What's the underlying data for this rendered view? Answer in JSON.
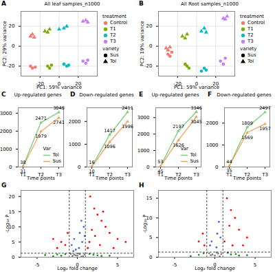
{
  "chart_data": [
    {
      "panel": "A",
      "type": "scatter",
      "title": "All leaf samples_n1000",
      "x_label": "PC1: 59% variance",
      "y_label": "PC2: 29% variance",
      "xlim": [
        -40,
        40
      ],
      "xticks": [
        -20,
        0,
        20
      ],
      "ylim": [
        -30,
        35
      ],
      "yticks": [
        -20,
        0,
        20
      ],
      "grid": true,
      "legend": "right",
      "legend_titles": [
        "treatment",
        "variety"
      ],
      "varieties": [
        {
          "name": "Sus",
          "marker": "circle"
        },
        {
          "name": "Tol",
          "marker": "triangle"
        }
      ],
      "series": [
        {
          "name": "Control",
          "color": "#F8766D",
          "x": [
            -30,
            -28,
            -26,
            -30,
            -28,
            -25
          ],
          "y": [
            10,
            12,
            9,
            -20,
            -22,
            -21
          ],
          "variety": [
            "Tol",
            "Tol",
            "Tol",
            "Sus",
            "Sus",
            "Sus"
          ]
        },
        {
          "name": "T1",
          "color": "#7CAE00",
          "x": [
            -15,
            -12,
            -10,
            -12,
            -10,
            -8
          ],
          "y": [
            15,
            14,
            17,
            -20,
            -22,
            -19
          ],
          "variety": [
            "Tol",
            "Tol",
            "Tol",
            "Sus",
            "Sus",
            "Sus"
          ]
        },
        {
          "name": "T2",
          "color": "#00BFC4",
          "x": [
            0,
            5,
            8,
            5,
            8,
            10
          ],
          "y": [
            17,
            18,
            20,
            -18,
            -20,
            -19
          ],
          "variety": [
            "Tol",
            "Tol",
            "Tol",
            "Sus",
            "Sus",
            "Sus"
          ]
        },
        {
          "name": "T3",
          "color": "#C77CFF",
          "x": [
            25,
            28,
            30,
            25,
            28,
            30
          ],
          "y": [
            25,
            26,
            24,
            -15,
            -17,
            -14
          ],
          "variety": [
            "Tol",
            "Tol",
            "Tol",
            "Sus",
            "Sus",
            "Sus"
          ]
        }
      ]
    },
    {
      "panel": "B",
      "type": "scatter",
      "title": "All Root samples_n1000",
      "x_label": "PC1: 59% variance",
      "y_label": "PC2: 19% variance",
      "xlim": [
        -40,
        40
      ],
      "xticks": [
        -20,
        0,
        20
      ],
      "ylim": [
        -30,
        35
      ],
      "yticks": [
        -20,
        0,
        20
      ],
      "grid": true,
      "legend": "right",
      "legend_titles": [
        "treatment",
        "variety"
      ],
      "varieties": [
        {
          "name": "Sus",
          "marker": "circle"
        },
        {
          "name": "Tol",
          "marker": "triangle"
        }
      ],
      "series": [
        {
          "name": "Control",
          "color": "#F8766D",
          "x": [
            -32,
            -30,
            -28,
            -30,
            -28,
            -26
          ],
          "y": [
            -2,
            -4,
            -1,
            -8,
            -10,
            -6
          ],
          "variety": [
            "Tol",
            "Tol",
            "Tol",
            "Sus",
            "Sus",
            "Sus"
          ]
        },
        {
          "name": "T1",
          "color": "#7CAE00",
          "x": [
            -15,
            -12,
            -10,
            -10,
            -8,
            -12
          ],
          "y": [
            10,
            8,
            12,
            -20,
            -22,
            -18
          ],
          "variety": [
            "Tol",
            "Tol",
            "Tol",
            "Sus",
            "Sus",
            "Sus"
          ]
        },
        {
          "name": "T2",
          "color": "#00BFC4",
          "x": [
            5,
            8,
            10,
            5,
            8,
            10
          ],
          "y": [
            15,
            18,
            14,
            -25,
            -22,
            -24
          ],
          "variety": [
            "Tol",
            "Tol",
            "Tol",
            "Sus",
            "Sus",
            "Sus"
          ]
        },
        {
          "name": "T3",
          "color": "#C77CFF",
          "x": [
            28,
            30,
            32,
            25,
            28,
            30
          ],
          "y": [
            28,
            27,
            30,
            -15,
            -18,
            -12
          ],
          "variety": [
            "Tol",
            "Tol",
            "Tol",
            "Sus",
            "Sus",
            "Sus"
          ]
        }
      ]
    },
    {
      "panel": "C",
      "type": "line",
      "title": "Up-regulated genes",
      "x_label": "Time points",
      "categories": [
        "T1",
        "T2",
        "T3"
      ],
      "ylim": [
        0,
        3300
      ],
      "yticks": [
        0,
        1000,
        2000,
        3000
      ],
      "grid": false,
      "data_labels": true,
      "marker": "triangle",
      "legend": "bottom-right",
      "legend_titles": [
        "Var"
      ],
      "series": [
        {
          "name": "Tol",
          "color": "#7ccd7c",
          "values": [
            38,
            2471,
            3048
          ]
        },
        {
          "name": "Sus",
          "color": "#f4a460",
          "values": [
            31,
            1979,
            2741
          ]
        }
      ]
    },
    {
      "panel": "D",
      "type": "line",
      "title": "Down-regulated genes",
      "x_label": "Time points",
      "categories": [
        "T1",
        "T2",
        "T3"
      ],
      "ylim": [
        0,
        2600
      ],
      "yticks": [
        0,
        1000,
        2000
      ],
      "grid": false,
      "data_labels": true,
      "marker": "triangle",
      "series": [
        {
          "name": "Tol",
          "color": "#7ccd7c",
          "values": [
            16,
            1417,
            2411
          ]
        },
        {
          "name": "Sus",
          "color": "#f4a460",
          "values": [
            10,
            1096,
            1996
          ]
        }
      ]
    },
    {
      "panel": "E",
      "type": "line",
      "title": "Up-regulated genes",
      "x_label": "Time points",
      "categories": [
        "T1",
        "T2",
        "T3"
      ],
      "ylim": [
        0,
        3600
      ],
      "yticks": [
        0,
        1000,
        2000,
        3000
      ],
      "grid": false,
      "data_labels": true,
      "marker": "triangle",
      "legend": "bottom-right",
      "legend_titles": [
        "Var"
      ],
      "series": [
        {
          "name": "Tol",
          "color": "#7ccd7c",
          "values": [
            53,
            2197,
            3346
          ]
        },
        {
          "name": "Sus",
          "color": "#f4a460",
          "values": [
            45,
            1626,
            3045
          ]
        }
      ]
    },
    {
      "panel": "F",
      "type": "line",
      "title": "Down-regulated genes",
      "x_label": "Time points",
      "categories": [
        "T1",
        "T2",
        "T3"
      ],
      "ylim": [
        0,
        2700
      ],
      "yticks": [
        0,
        1000,
        2000
      ],
      "grid": false,
      "data_labels": true,
      "marker": "triangle",
      "series": [
        {
          "name": "Tol",
          "color": "#7ccd7c",
          "values": [
            44,
            1809,
            2497
          ]
        },
        {
          "name": "Sus",
          "color": "#f4a460",
          "values": [
            35,
            1569,
            1957
          ]
        }
      ]
    },
    {
      "panel": "G",
      "type": "scatter",
      "x_label": "Log₂ fold change",
      "y_label": "-Log₁₀ P",
      "xlim": [
        -7,
        7
      ],
      "xticks": [
        -5,
        0,
        5
      ],
      "ylim": [
        0,
        22
      ],
      "yticks": [
        0,
        5,
        10,
        15,
        20
      ],
      "grid": false,
      "cutoffs": {
        "x": [
          -1,
          1
        ],
        "y": 1.3
      },
      "series": [
        {
          "color": "#808080",
          "x": [
            0,
            0.3,
            -0.4,
            0.7,
            -0.8,
            0.5,
            -0.2,
            0.1,
            -0.6,
            0.9
          ],
          "y": [
            0.5,
            1,
            0.8,
            0.3,
            1.1,
            0.2,
            0.6,
            1.2,
            0.4,
            0.9
          ]
        },
        {
          "color": "#228B22",
          "x": [
            -2,
            -1.5,
            2,
            3,
            -3,
            1.5,
            2.5,
            -2.5,
            4,
            -4
          ],
          "y": [
            0.5,
            1,
            0.8,
            0.4,
            0.3,
            1.1,
            0.6,
            0.9,
            0.5,
            0.7
          ]
        },
        {
          "color": "#4169E1",
          "x": [
            0.5,
            0.3,
            -0.4,
            0.8,
            -0.7,
            0.2,
            0.6,
            -0.2,
            0.9,
            -0.5
          ],
          "y": [
            12,
            8,
            6,
            10,
            4,
            3,
            5,
            2.5,
            7,
            2
          ]
        },
        {
          "color": "#FF0000",
          "x": [
            2.1,
            2.5,
            3,
            3.5,
            1.8,
            4,
            2.2,
            5,
            1.5,
            -1.5,
            -2,
            -2.5,
            -3,
            1.3,
            2.8,
            4.5,
            6,
            -1.2,
            1.6,
            3.2
          ],
          "y": [
            16,
            14,
            12,
            10,
            9,
            8,
            7,
            6,
            5,
            4,
            5,
            3,
            6,
            3,
            4,
            3,
            5,
            8,
            20,
            15
          ]
        }
      ]
    },
    {
      "panel": "H",
      "type": "scatter",
      "x_label": "Log₂ fold change",
      "y_label": "-Log₁₀ P",
      "xlim": [
        -7,
        7
      ],
      "xticks": [
        -5,
        0,
        5
      ],
      "ylim": [
        0,
        17
      ],
      "yticks": [
        0,
        5,
        10,
        15
      ],
      "grid": false,
      "cutoffs": {
        "x": [
          -1,
          1
        ],
        "y": 1.3
      },
      "series": [
        {
          "color": "#808080",
          "x": [
            0,
            0.4,
            -0.3,
            0.6,
            -0.7,
            0.2,
            -0.5,
            0.8
          ],
          "y": [
            0.4,
            0.9,
            0.7,
            0.2,
            1,
            1.2,
            0.5,
            0.8
          ]
        },
        {
          "color": "#228B22",
          "x": [
            -2,
            -1.4,
            2,
            3,
            -3,
            1.6,
            2.6,
            4
          ],
          "y": [
            0.6,
            1,
            0.7,
            0.4,
            0.3,
            1.1,
            0.8,
            0.5
          ]
        },
        {
          "color": "#4169E1",
          "x": [
            0.5,
            0.3,
            -0.4,
            0.7,
            -0.6,
            0.2
          ],
          "y": [
            9,
            6,
            4,
            5,
            3,
            2.5
          ]
        },
        {
          "color": "#FF0000",
          "x": [
            1.5,
            2,
            2.5,
            1.8,
            3,
            -1.5,
            -2,
            4,
            1.2,
            2.2,
            -1.3,
            3.5
          ],
          "y": [
            15,
            12,
            10,
            8,
            7,
            6,
            4,
            5,
            4,
            3,
            3,
            3
          ]
        }
      ]
    }
  ]
}
